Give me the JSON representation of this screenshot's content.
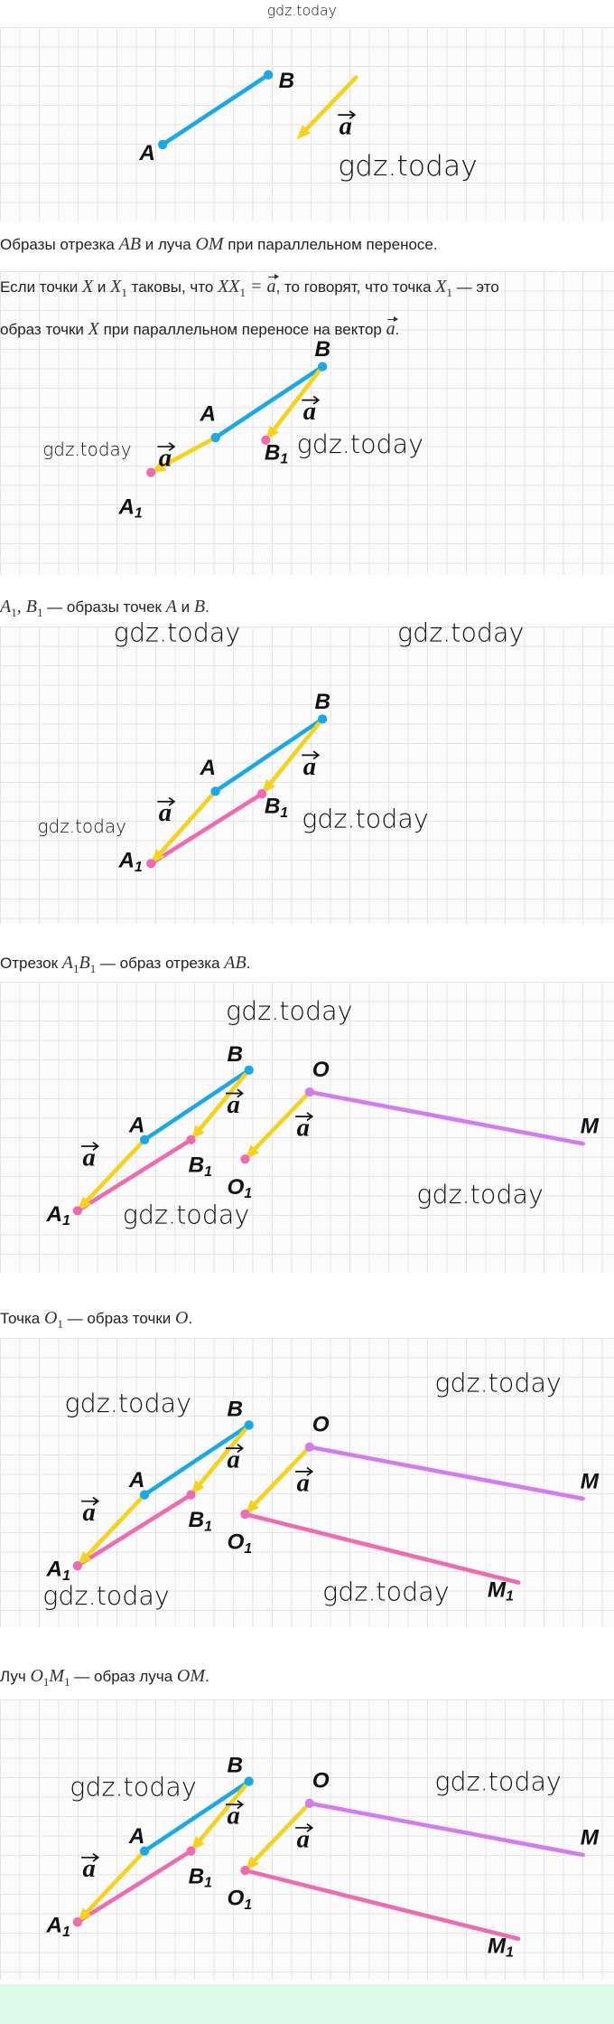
{
  "header": {
    "watermark": "gdz.today"
  },
  "watermark": "gdz.today",
  "labels": {
    "A": "A",
    "B": "B",
    "O": "O",
    "M": "M",
    "sub": "1",
    "vector": "a"
  },
  "colors": {
    "segment": "#1aa9e6",
    "vector": "#f6d21c",
    "image": "#f06ab0",
    "ray": "#d27cf0",
    "header_watermark": "#2a2ae0",
    "footer_band": "#dcfce9"
  },
  "paragraphs": [
    {
      "segments": [
        {
          "t": "Образы отрезка "
        },
        {
          "m": "AB"
        },
        {
          "t": " и луча "
        },
        {
          "m": "OM"
        },
        {
          "t": " при параллельном переносе."
        }
      ]
    },
    {
      "segments": [
        {
          "t": "Если точки "
        },
        {
          "m": "X"
        },
        {
          "t": " и "
        },
        {
          "m": "X",
          "sub": "1"
        },
        {
          "t": " таковы, что "
        },
        {
          "m": "XX",
          "sub": "1"
        },
        {
          "m": " = "
        },
        {
          "m": "a",
          "vec": true
        },
        {
          "t": ", то говорят, что точка "
        },
        {
          "m": "X",
          "sub": "1"
        },
        {
          "t": " — это"
        }
      ]
    },
    {
      "segments": [
        {
          "t": "образ точки "
        },
        {
          "m": "X"
        },
        {
          "t": " при параллельном переносе на вектор "
        },
        {
          "m": "a",
          "vec": true
        },
        {
          "t": "."
        }
      ]
    },
    {
      "segments": [
        {
          "m": "A",
          "sub": "1"
        },
        {
          "m": ", B",
          "sub": "1"
        },
        {
          "t": " — образы точек "
        },
        {
          "m": "A"
        },
        {
          "t": " и "
        },
        {
          "m": "B"
        },
        {
          "t": "."
        }
      ]
    },
    {
      "segments": [
        {
          "t": "Отрезок "
        },
        {
          "m": "A",
          "sub": "1"
        },
        {
          "m": "B",
          "sub": "1"
        },
        {
          "t": " — образ отрезка "
        },
        {
          "m": "AB"
        },
        {
          "t": "."
        }
      ]
    },
    {
      "segments": [
        {
          "t": "Точка "
        },
        {
          "m": "O",
          "sub": "1"
        },
        {
          "t": " — образ точки "
        },
        {
          "m": "O"
        },
        {
          "t": "."
        }
      ]
    },
    {
      "segments": [
        {
          "t": "Луч "
        },
        {
          "m": "O",
          "sub": "1"
        },
        {
          "m": "M",
          "sub": "1"
        },
        {
          "t": " — образ луча "
        },
        {
          "m": "OM"
        },
        {
          "t": "."
        }
      ]
    }
  ]
}
